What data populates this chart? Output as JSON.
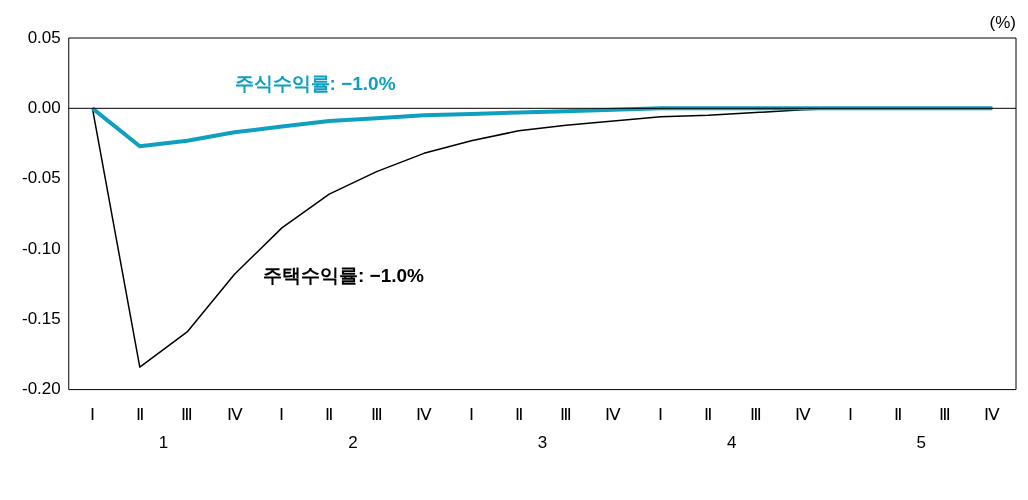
{
  "chart_data": {
    "type": "line",
    "ylabel": "(%)",
    "categories": [
      "Ⅰ",
      "Ⅱ",
      "Ⅲ",
      "Ⅳ",
      "Ⅰ",
      "Ⅱ",
      "Ⅲ",
      "Ⅳ",
      "Ⅰ",
      "Ⅱ",
      "Ⅲ",
      "Ⅳ",
      "Ⅰ",
      "Ⅱ",
      "Ⅲ",
      "Ⅳ",
      "Ⅰ",
      "Ⅱ",
      "Ⅲ",
      "Ⅳ"
    ],
    "series": [
      {
        "name": "주식수익률: −1.0%",
        "color": "#0fa0bf",
        "values": [
          0,
          -0.027,
          -0.023,
          -0.017,
          -0.013,
          -0.009,
          -0.007,
          -0.005,
          -0.004,
          -0.003,
          -0.002,
          -0.001,
          0,
          0,
          0,
          0,
          0,
          0,
          0,
          0
        ]
      },
      {
        "name": "주택수익률: −1.0%",
        "color": "#000000",
        "values": [
          0,
          -0.184,
          -0.159,
          -0.118,
          -0.085,
          -0.061,
          -0.045,
          -0.032,
          -0.023,
          -0.016,
          -0.012,
          -0.009,
          -0.006,
          -0.005,
          -0.003,
          -0.001,
          0,
          0,
          0,
          0
        ]
      }
    ],
    "ylim": [
      -0.2,
      0.05
    ],
    "yticks": [
      {
        "value": -0.2,
        "label": "-0.20"
      },
      {
        "value": -0.15,
        "label": "-0.15"
      },
      {
        "value": -0.1,
        "label": "-0.10"
      },
      {
        "value": -0.05,
        "label": "-0.05"
      },
      {
        "value": 0,
        "label": "0.00"
      },
      {
        "value": 0.05,
        "label": "0.05"
      }
    ],
    "ref_lines": [
      {
        "axis": "y",
        "value": 0,
        "color": "#000000"
      }
    ],
    "annotations": [
      "1",
      "2",
      "3",
      "4",
      "5"
    ],
    "grid": false,
    "legend": false,
    "marker": "none",
    "line_style": "solid"
  }
}
